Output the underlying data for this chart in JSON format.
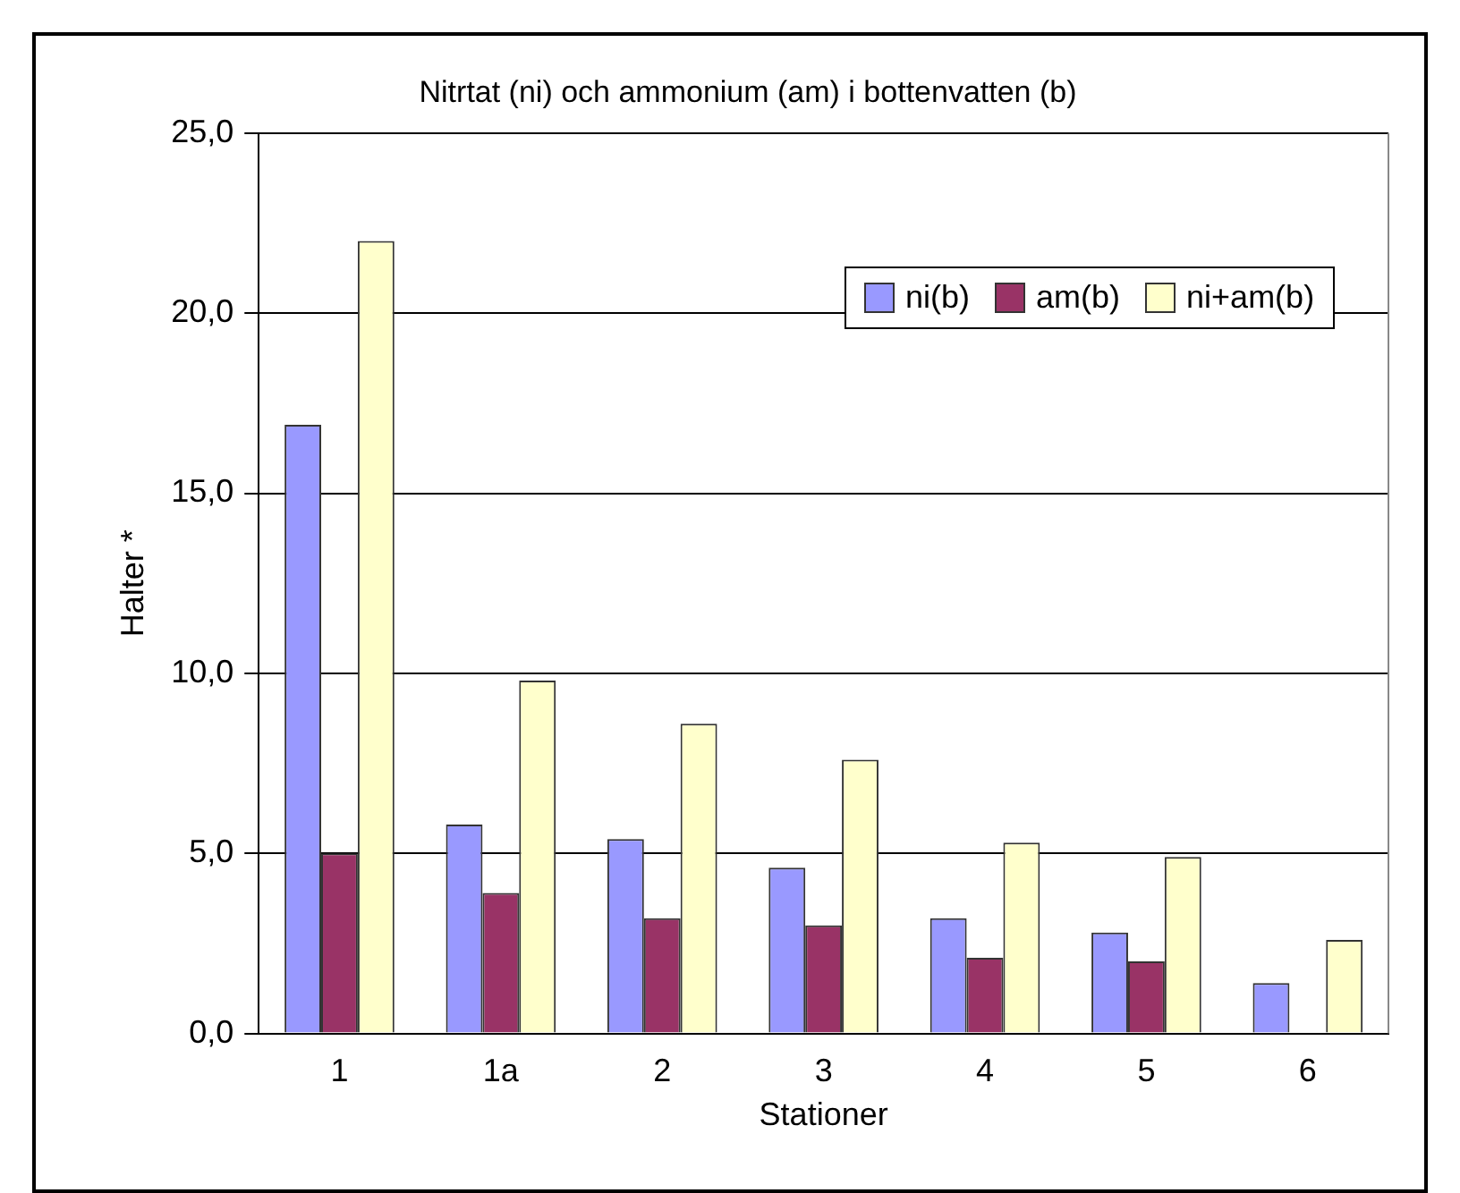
{
  "chart_data": {
    "type": "bar",
    "title": "Nitrtat (ni) och ammonium (am) i bottenvatten (b)",
    "xlabel": "Stationer",
    "ylabel": "Halter *",
    "categories": [
      "1",
      "1a",
      "2",
      "3",
      "4",
      "5",
      "6"
    ],
    "series": [
      {
        "name": "ni(b)",
        "color": "#9999ff",
        "values": [
          16.9,
          5.8,
          5.4,
          4.6,
          3.2,
          2.8,
          1.4
        ]
      },
      {
        "name": "am(b)",
        "color": "#993366",
        "values": [
          5.0,
          3.9,
          3.2,
          3.0,
          2.1,
          2.0,
          null
        ]
      },
      {
        "name": "ni+am(b)",
        "color": "#ffffcc",
        "values": [
          22.0,
          9.8,
          8.6,
          7.6,
          5.3,
          4.9,
          2.6
        ]
      }
    ],
    "ylim": [
      0,
      25
    ],
    "yticks": [
      {
        "value": 0,
        "label": "0,0"
      },
      {
        "value": 5,
        "label": "5,0"
      },
      {
        "value": 10,
        "label": "10,0"
      },
      {
        "value": 15,
        "label": "15,0"
      },
      {
        "value": 20,
        "label": "20,0"
      },
      {
        "value": 25,
        "label": "25,0"
      }
    ],
    "grid": "y",
    "legend": "top right"
  }
}
